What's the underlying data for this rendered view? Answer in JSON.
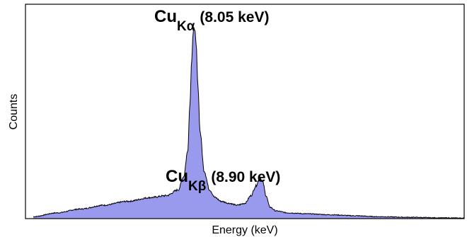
{
  "chart_data": {
    "type": "area",
    "title": "",
    "xlabel": "Energy (keV)",
    "ylabel": "Counts",
    "xlim": [
      5.9,
      11.5
    ],
    "ylim": [
      0,
      1.0
    ],
    "x_tick_labels_shown": false,
    "y_tick_labels_shown": false,
    "grid": false,
    "fill_color": "#9999ee",
    "line_color": "#000000",
    "series": [
      {
        "x": [
          6.0,
          6.3,
          6.6,
          6.9,
          7.2,
          7.5,
          7.7,
          7.85,
          7.92,
          7.97,
          8.0,
          8.02,
          8.04,
          8.05,
          8.06,
          8.08,
          8.1,
          8.13,
          8.18,
          8.25,
          8.32,
          8.4,
          8.5,
          8.6,
          8.7,
          8.78,
          8.84,
          8.88,
          8.9,
          8.93,
          8.97,
          9.02,
          9.1,
          9.25,
          9.5,
          9.8,
          10.1,
          10.4,
          10.8,
          11.2,
          11.5
        ],
        "y": [
          0.01,
          0.03,
          0.05,
          0.07,
          0.09,
          0.11,
          0.12,
          0.15,
          0.22,
          0.35,
          0.6,
          0.82,
          0.96,
          1.0,
          0.99,
          0.9,
          0.7,
          0.45,
          0.25,
          0.15,
          0.11,
          0.09,
          0.08,
          0.07,
          0.08,
          0.12,
          0.17,
          0.2,
          0.21,
          0.19,
          0.12,
          0.06,
          0.04,
          0.03,
          0.025,
          0.02,
          0.015,
          0.01,
          0.007,
          0.004,
          0.003
        ]
      }
    ],
    "annotations": [
      {
        "main": "Cu",
        "sub": "Kα",
        "value": "(8.05 keV)"
      },
      {
        "main": "Cu",
        "sub": "Kβ",
        "value": "(8.90 keV)"
      }
    ]
  }
}
